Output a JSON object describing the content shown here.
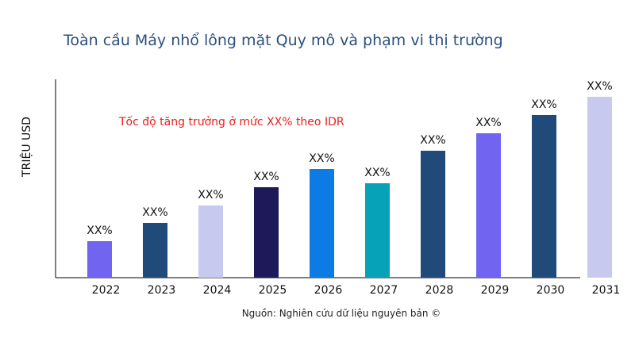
{
  "chart_data": {
    "type": "bar",
    "title": "Toàn cầu Máy nhổ lông mặt Quy mô và phạm vi thị trường",
    "ylabel": "TRIỆU USD",
    "xlabel": "",
    "annotation": "Tốc độ tăng trưởng ở mức XX% theo IDR",
    "source": "Nguồn: Nghiên cứu dữ liệu nguyên bản ©",
    "categories": [
      "2022",
      "2023",
      "2024",
      "2025",
      "2026",
      "2027",
      "2028",
      "2029",
      "2030",
      "2031"
    ],
    "values": [
      46,
      69,
      91,
      114,
      137,
      119,
      160,
      182,
      205,
      228
    ],
    "data_labels": [
      "XX%",
      "XX%",
      "XX%",
      "XX%",
      "XX%",
      "XX%",
      "XX%",
      "XX%",
      "XX%",
      "XX%"
    ],
    "colors": [
      "#7064f0",
      "#1f4a7a",
      "#c8c9ef",
      "#1e1a5a",
      "#0e7ae4",
      "#05a2b8",
      "#1f4a7a",
      "#7064f0",
      "#1f4a7a",
      "#c8c9ef"
    ],
    "grid": false,
    "legend": "none"
  }
}
